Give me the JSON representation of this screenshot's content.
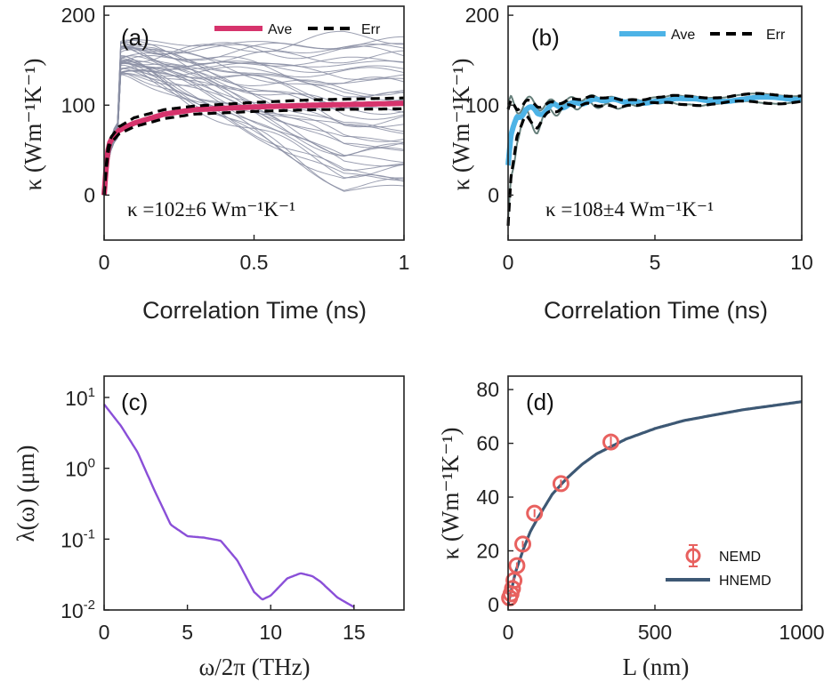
{
  "panels": [
    {
      "id": "a",
      "panel_label": "(a)",
      "xlabel": "Correlation Time (ns)",
      "ylabel": "κ (Wm⁻¹K⁻¹)",
      "annotation": "κ =102±6 Wm⁻¹K⁻¹",
      "legend": [
        "Ave",
        "Err"
      ],
      "colors": {
        "ave": "#d6336c",
        "err": "#000000",
        "individual": "#8a8ea3"
      }
    },
    {
      "id": "b",
      "panel_label": "(b)",
      "xlabel": "Correlation Time (ns)",
      "ylabel": "κ (Wm⁻¹K⁻¹)",
      "annotation": "κ =108±4 Wm⁻¹K⁻¹",
      "legend": [
        "Ave",
        "Err"
      ],
      "colors": {
        "ave": "#4db3e6",
        "err": "#000000",
        "individual": "#667f7a"
      }
    },
    {
      "id": "c",
      "panel_label": "(c)",
      "xlabel": "ω/2π (THz)",
      "ylabel": "λ(ω) (μm)",
      "colors": {
        "line": "#8a4fd8"
      }
    },
    {
      "id": "d",
      "panel_label": "(d)",
      "xlabel": "L (nm)",
      "ylabel": "κ (Wm⁻¹K⁻¹)",
      "legend": [
        "NEMD",
        "HNEMD"
      ],
      "colors": {
        "nemd": "#e8615f",
        "hnemd": "#3d5874"
      }
    }
  ],
  "chart_data": [
    {
      "type": "line",
      "panel": "a",
      "xlim": [
        0,
        1
      ],
      "ylim": [
        -50,
        210
      ],
      "xticks": [
        "0",
        "0.5",
        "1"
      ],
      "yticks": [
        "0",
        "100",
        "200"
      ],
      "grid": false,
      "legend_position": "top-right",
      "series": [
        {
          "name": "Ave",
          "x": [
            0,
            0.01,
            0.02,
            0.05,
            0.1,
            0.2,
            0.3,
            0.5,
            0.7,
            1.0
          ],
          "y": [
            0,
            45,
            60,
            72,
            80,
            90,
            95,
            98,
            100,
            102
          ]
        },
        {
          "name": "Err",
          "x": [
            0,
            0.01,
            0.02,
            0.05,
            0.1,
            0.2,
            0.3,
            0.5,
            0.7,
            1.0
          ],
          "y": [
            0,
            48,
            63,
            76,
            86,
            95,
            99,
            103,
            106,
            108
          ]
        },
        {
          "name": "Err",
          "x": [
            0,
            0.01,
            0.02,
            0.05,
            0.1,
            0.2,
            0.3,
            0.5,
            0.7,
            1.0
          ],
          "y": [
            0,
            42,
            57,
            68,
            76,
            85,
            90,
            93,
            95,
            96
          ]
        }
      ],
      "individual_runs": {
        "count": 40,
        "final_value_range": [
          5,
          178
        ]
      }
    },
    {
      "type": "line",
      "panel": "b",
      "xlim": [
        0,
        10
      ],
      "ylim": [
        -50,
        210
      ],
      "xticks": [
        "0",
        "5",
        "10"
      ],
      "yticks": [
        "0",
        "100",
        "200"
      ],
      "grid": false,
      "legend_position": "top-right",
      "series": [
        {
          "name": "Ave",
          "x": [
            0,
            0.1,
            0.3,
            0.6,
            1.0,
            1.5,
            2,
            3,
            5,
            7,
            10
          ],
          "y": [
            30,
            60,
            85,
            95,
            90,
            100,
            102,
            104,
            105,
            106,
            108
          ]
        },
        {
          "name": "Err",
          "x": [
            0,
            0.1,
            0.3,
            0.6,
            1.0,
            1.5,
            2,
            3,
            5,
            7,
            10
          ],
          "y": [
            90,
            100,
            95,
            103,
            100,
            104,
            106,
            107,
            108,
            110,
            112
          ]
        },
        {
          "name": "Err",
          "x": [
            0,
            0.1,
            0.3,
            0.6,
            1.0,
            1.5,
            2,
            3,
            5,
            7,
            10
          ],
          "y": [
            -40,
            20,
            70,
            85,
            80,
            95,
            97,
            100,
            101,
            102,
            104
          ]
        }
      ]
    },
    {
      "type": "line",
      "panel": "c",
      "xlim": [
        0,
        18
      ],
      "ylim": [
        0.01,
        20
      ],
      "yscale": "log",
      "xticks": [
        "0",
        "5",
        "10",
        "15"
      ],
      "yticks": [
        "10^-2",
        "10^-1",
        "10^0",
        "10^1"
      ],
      "grid": false,
      "series": [
        {
          "name": "",
          "x": [
            0,
            1,
            2,
            3,
            4,
            5,
            6,
            7,
            8,
            9,
            9.5,
            10,
            11,
            11.8,
            12.5,
            13,
            14,
            15
          ],
          "y": [
            8,
            4,
            1.7,
            0.5,
            0.16,
            0.11,
            0.105,
            0.095,
            0.05,
            0.018,
            0.014,
            0.016,
            0.028,
            0.033,
            0.03,
            0.025,
            0.015,
            0.011
          ]
        }
      ]
    },
    {
      "type": "scatter",
      "panel": "d",
      "xlim": [
        0,
        1000
      ],
      "ylim": [
        -2,
        85
      ],
      "xticks": [
        "0",
        "500",
        "1000"
      ],
      "yticks": [
        "0",
        "20",
        "40",
        "60",
        "80"
      ],
      "grid": false,
      "legend_position": "lower-right",
      "series": [
        {
          "name": "NEMD",
          "x": [
            5,
            10,
            15,
            20,
            30,
            50,
            90,
            180,
            350
          ],
          "y": [
            2.5,
            4,
            6,
            9,
            14.5,
            22.5,
            34,
            45,
            60.5
          ],
          "err": [
            1,
            1,
            1,
            1,
            1.2,
            1.2,
            1.5,
            1.5,
            2
          ]
        },
        {
          "name": "HNEMD",
          "x": [
            0,
            25,
            50,
            75,
            100,
            150,
            200,
            250,
            300,
            400,
            500,
            600,
            700,
            800,
            900,
            1000
          ],
          "y": [
            0,
            12,
            20,
            27,
            32,
            41,
            47,
            52,
            56,
            61.5,
            65.5,
            68.5,
            70.5,
            72.5,
            74,
            75.5
          ]
        }
      ]
    }
  ]
}
